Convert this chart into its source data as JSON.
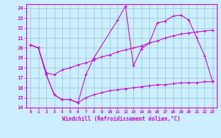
{
  "xlabel": "Windchill (Refroidissement éolien,°C)",
  "background_color": "#cceeff",
  "grid_color": "#99cccc",
  "line_color": "#cc00cc",
  "xlim": [
    -0.5,
    23.5
  ],
  "ylim": [
    14,
    24.4
  ],
  "xticks": [
    0,
    1,
    2,
    3,
    4,
    5,
    6,
    7,
    8,
    9,
    10,
    11,
    12,
    13,
    14,
    15,
    16,
    17,
    18,
    19,
    20,
    21,
    22,
    23
  ],
  "yticks": [
    14,
    15,
    16,
    17,
    18,
    19,
    20,
    21,
    22,
    23,
    24
  ],
  "series": [
    {
      "x": [
        0,
        1,
        2,
        3,
        4,
        5,
        6,
        7,
        8,
        11,
        12,
        13,
        14,
        15,
        16,
        17,
        18,
        19,
        20,
        21,
        22,
        23
      ],
      "y": [
        20.3,
        20.0,
        17.3,
        15.3,
        14.8,
        14.8,
        14.5,
        17.3,
        19.0,
        22.8,
        24.2,
        18.2,
        19.9,
        20.5,
        22.5,
        22.7,
        23.2,
        23.3,
        22.8,
        21.0,
        19.2,
        16.6
      ]
    },
    {
      "x": [
        0,
        1,
        2,
        3,
        4,
        5,
        6,
        7,
        8,
        9,
        10,
        11,
        12,
        13,
        14,
        15,
        16,
        17,
        18,
        19,
        20,
        21,
        22,
        23
      ],
      "y": [
        20.3,
        20.0,
        17.3,
        15.3,
        14.8,
        14.8,
        14.5,
        15.0,
        15.3,
        15.5,
        15.7,
        15.8,
        15.9,
        16.0,
        16.1,
        16.2,
        16.3,
        16.3,
        16.4,
        16.5,
        16.5,
        16.5,
        16.6,
        16.6
      ]
    },
    {
      "x": [
        0,
        1,
        2,
        3,
        4,
        5,
        6,
        7,
        8,
        9,
        10,
        11,
        12,
        13,
        14,
        15,
        16,
        17,
        18,
        19,
        20,
        21,
        22,
        23
      ],
      "y": [
        20.3,
        20.0,
        17.5,
        17.3,
        17.8,
        18.0,
        18.3,
        18.5,
        18.8,
        19.1,
        19.3,
        19.6,
        19.8,
        20.0,
        20.2,
        20.5,
        20.7,
        21.0,
        21.2,
        21.4,
        21.5,
        21.6,
        21.7,
        21.8
      ]
    }
  ]
}
